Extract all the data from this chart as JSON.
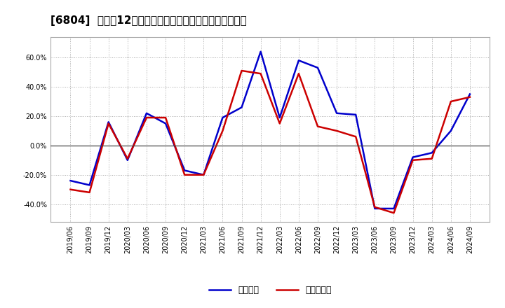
{
  "title": "[6804]  利益だ12か月移動合計の対前年同期増減率の推移",
  "dates": [
    "2019/06",
    "2019/09",
    "2019/12",
    "2020/03",
    "2020/06",
    "2020/09",
    "2020/12",
    "2021/03",
    "2021/06",
    "2021/09",
    "2021/12",
    "2022/03",
    "2022/06",
    "2022/09",
    "2022/12",
    "2023/03",
    "2023/06",
    "2023/09",
    "2023/12",
    "2024/03",
    "2024/06",
    "2024/09"
  ],
  "operating_profit": [
    -0.24,
    -0.27,
    0.16,
    -0.1,
    0.22,
    0.15,
    -0.17,
    -0.2,
    0.19,
    0.26,
    0.64,
    0.19,
    0.58,
    0.53,
    0.22,
    0.21,
    -0.43,
    -0.43,
    -0.08,
    -0.05,
    0.1,
    0.35
  ],
  "net_profit": [
    -0.3,
    -0.32,
    0.15,
    -0.09,
    0.19,
    0.19,
    -0.2,
    -0.2,
    0.1,
    0.51,
    0.49,
    0.15,
    0.49,
    0.13,
    0.1,
    0.06,
    -0.42,
    -0.46,
    -0.1,
    -0.09,
    0.3,
    0.33
  ],
  "operating_color": "#0000cc",
  "net_color": "#cc0000",
  "background_color": "#ffffff",
  "plot_bg_color": "#ffffff",
  "grid_color": "#aaaaaa",
  "ylim": [
    -0.52,
    0.74
  ],
  "yticks": [
    -0.4,
    -0.2,
    0.0,
    0.2,
    0.4,
    0.6
  ],
  "legend_label_op": "経常利益",
  "legend_label_net": "当期純利益",
  "title_fontsize": 11,
  "tick_fontsize": 7,
  "legend_fontsize": 9,
  "line_width": 1.8
}
